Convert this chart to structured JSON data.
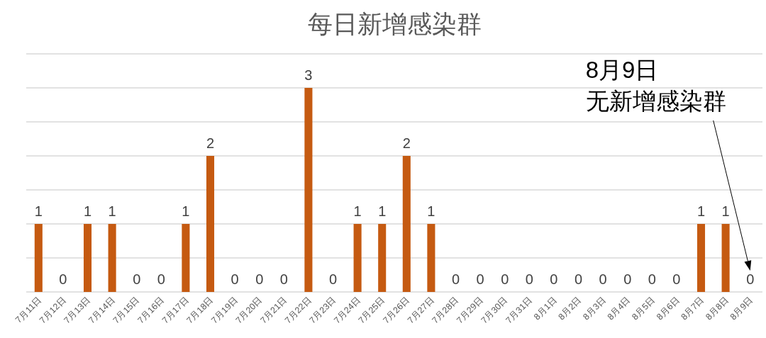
{
  "chart_data": {
    "type": "bar",
    "title": "每日新增感染群",
    "categories": [
      "7月11日",
      "7月12日",
      "7月13日",
      "7月14日",
      "7月15日",
      "7月16日",
      "7月17日",
      "7月18日",
      "7月19日",
      "7月20日",
      "7月21日",
      "7月22日",
      "7月23日",
      "7月24日",
      "7月25日",
      "7月26日",
      "7月27日",
      "7月28日",
      "7月29日",
      "7月30日",
      "7月31日",
      "8月1日",
      "8月2日",
      "8月3日",
      "8月4日",
      "8月5日",
      "8月6日",
      "8月7日",
      "8月8日",
      "8月9日"
    ],
    "values": [
      1,
      0,
      1,
      1,
      0,
      0,
      1,
      2,
      0,
      0,
      0,
      3,
      0,
      1,
      1,
      2,
      1,
      0,
      0,
      0,
      0,
      0,
      0,
      0,
      0,
      0,
      0,
      1,
      1,
      0
    ],
    "color": "#c55a11",
    "ylim": [
      0,
      3.5
    ],
    "yticks": [
      {
        "value": 0,
        "label": null
      },
      {
        "value": 0.5,
        "label": null
      },
      {
        "value": 1,
        "label": null
      },
      {
        "value": 1.5,
        "label": null
      },
      {
        "value": 2,
        "label": null
      },
      {
        "value": 2.5,
        "label": null
      },
      {
        "value": 3,
        "label": null
      },
      {
        "value": 3.5,
        "label": null
      }
    ],
    "grid": "y",
    "tick_labels": "x",
    "data_labels": true,
    "annotations": [
      "8月9日",
      "无新增感染群"
    ]
  }
}
